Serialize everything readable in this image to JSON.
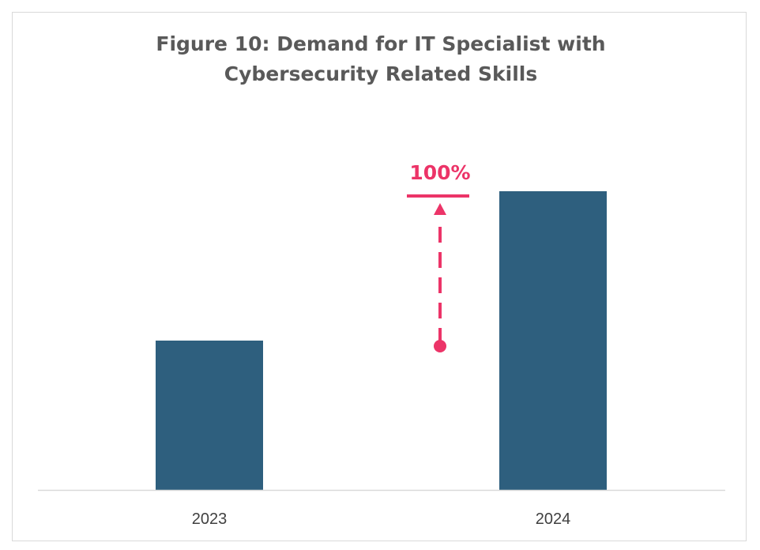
{
  "chart_data": {
    "type": "bar",
    "title_lines": [
      "Figure 10: Demand for IT Specialist with",
      "Cybersecurity Related Skills"
    ],
    "categories": [
      "2023",
      "2024"
    ],
    "values": [
      1,
      2
    ],
    "xlabel": "",
    "ylabel": "",
    "y_axis_shown": false,
    "grid": false,
    "legend": "none",
    "annotation": {
      "label": "100%",
      "from_category": "2023",
      "to_category": "2024",
      "style": "dashed-arrow"
    },
    "colors": {
      "bar": "#2E5F7E",
      "annotation": "#EC3468",
      "axis": "#d9d9d9",
      "title": "#595959"
    }
  }
}
